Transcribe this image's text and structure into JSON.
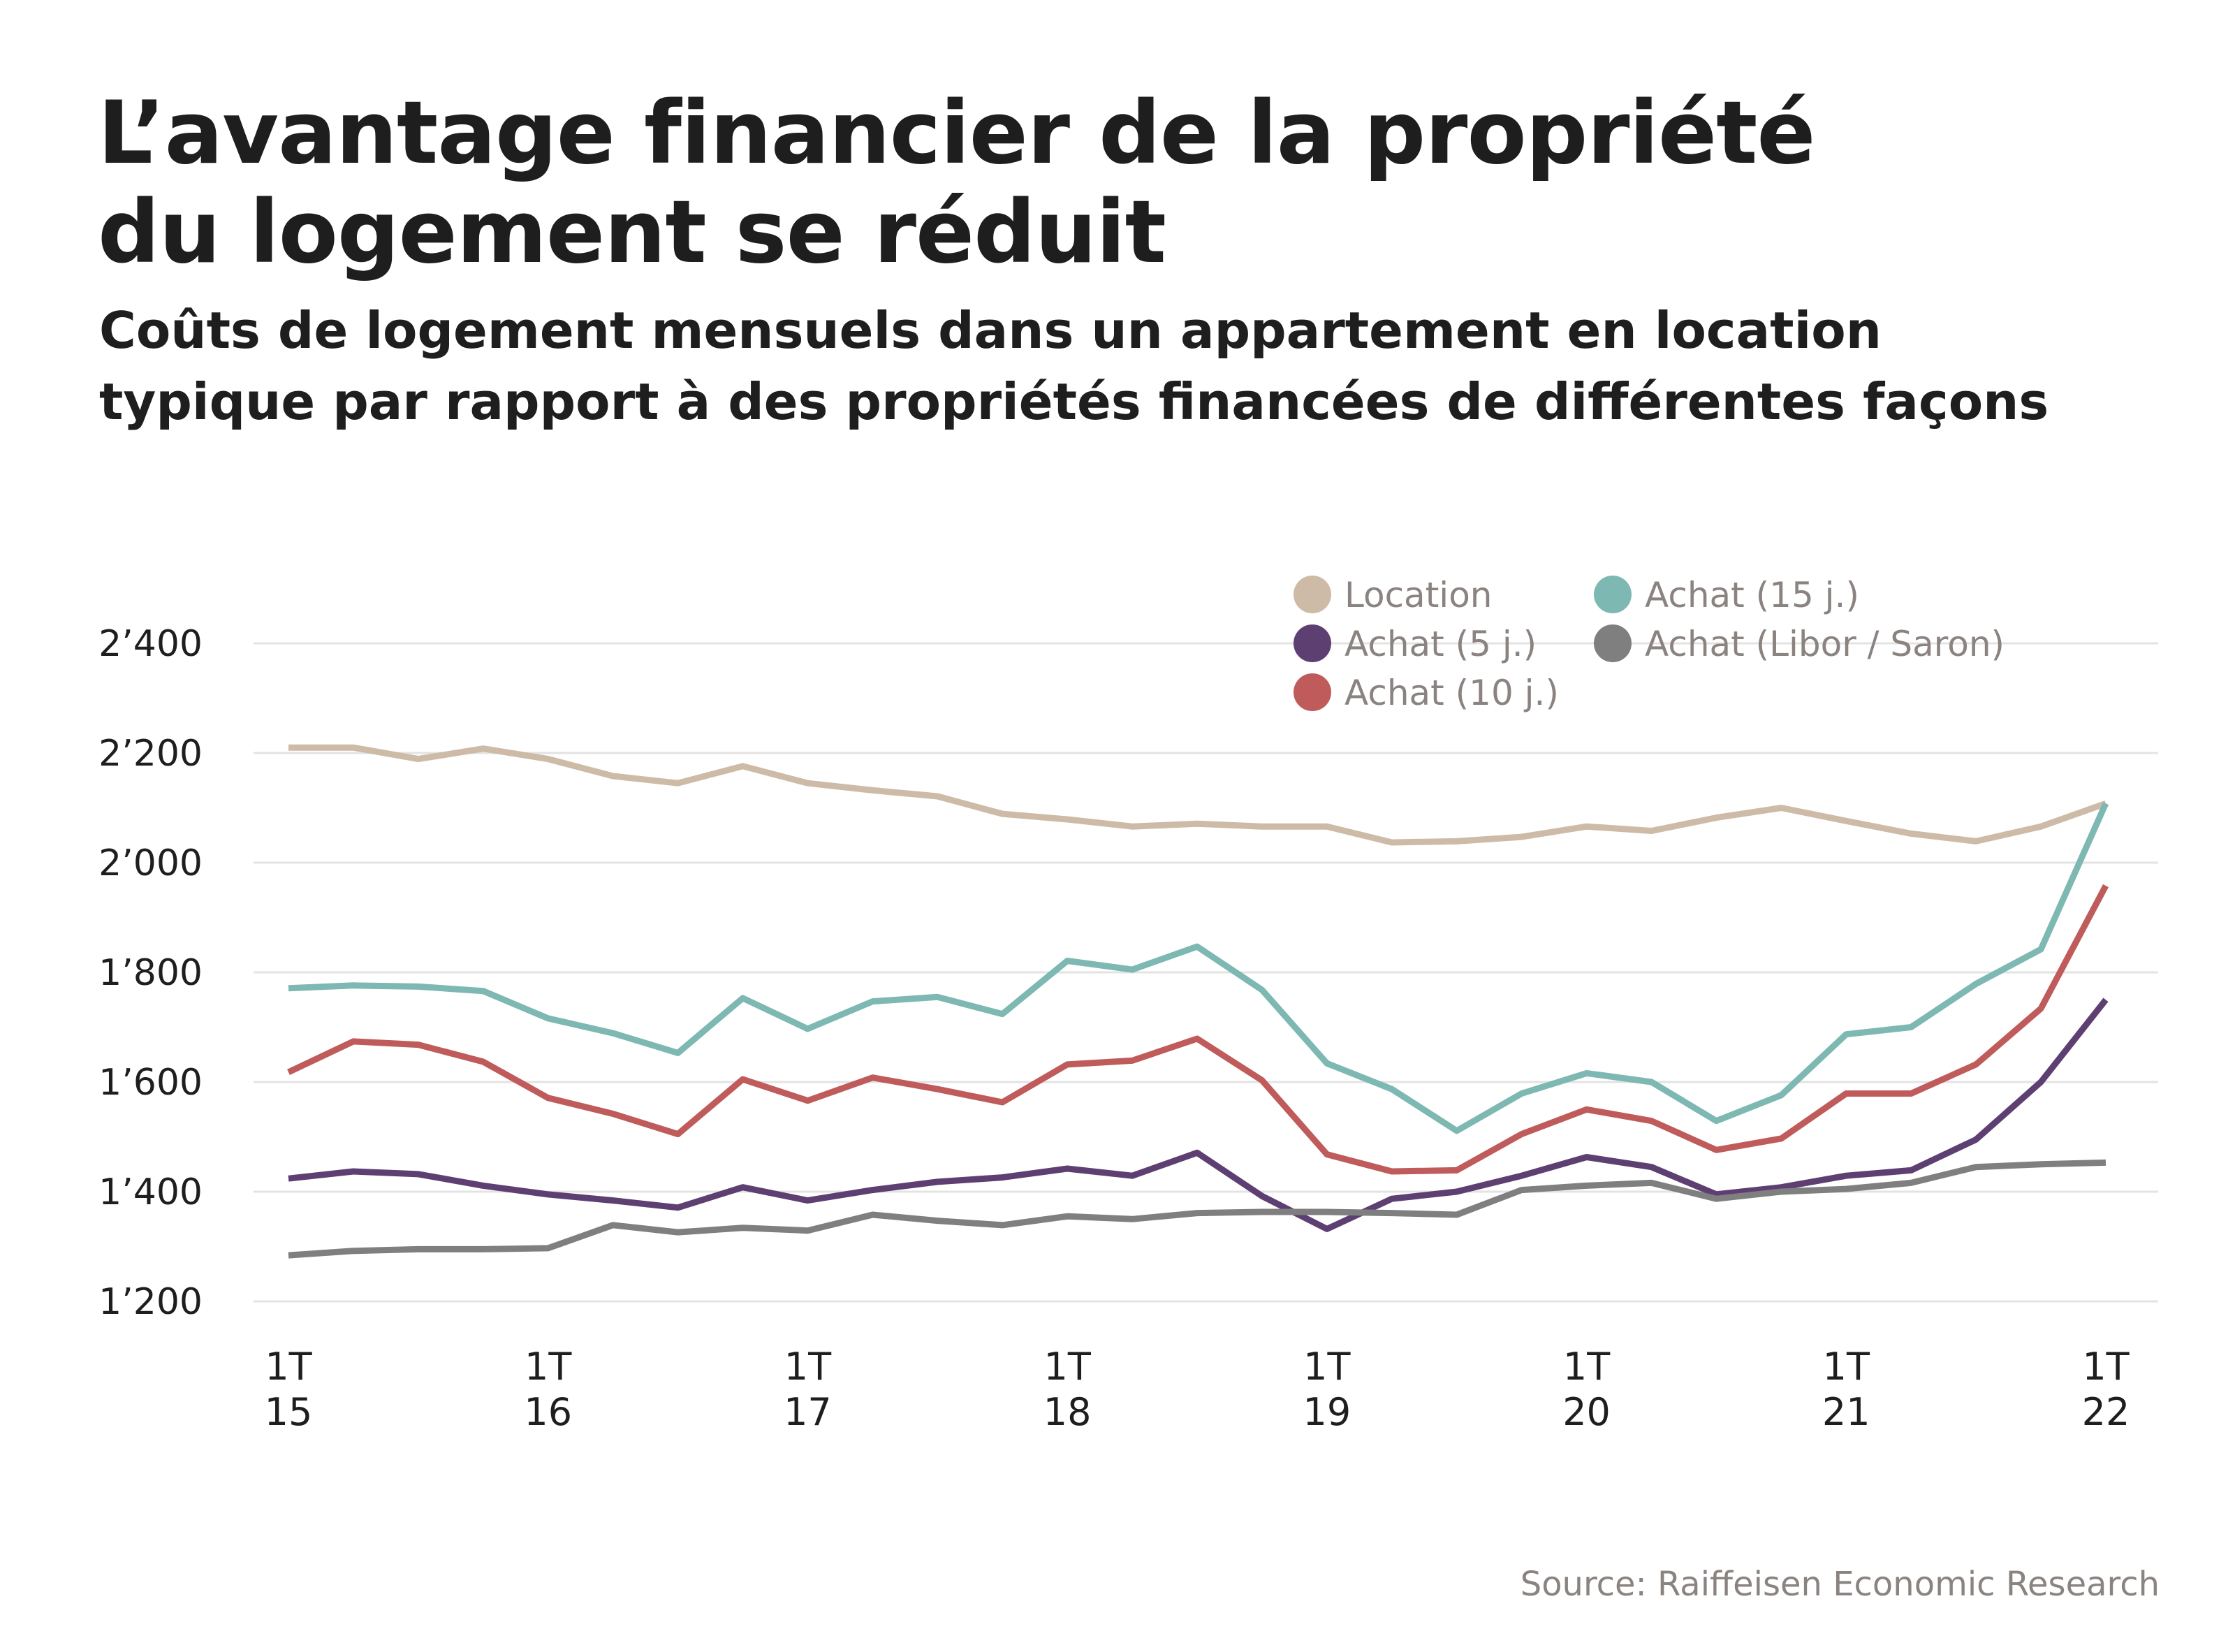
{
  "title": "L’avantage financier de la propriété du logement se réduit",
  "title_lines": [
    "L’avantage financier de la propriété",
    "du logement se réduit"
  ],
  "subtitle_lines": [
    "Coûts de logement mensuels dans un appartement en location",
    "typique par rapport à des propriétés financées de différentes façons"
  ],
  "source": "Source: Raiffeisen Economic Research",
  "chart_data": {
    "type": "line",
    "title": "L’avantage financier de la propriété du logement se réduit",
    "subtitle": "Coûts de logement mensuels dans un appartement en location typique par rapport à des propriétés financées de différentes façons",
    "xlabel": "",
    "ylabel": "",
    "ylim": [
      1200,
      2400
    ],
    "yticks": [
      1200,
      1400,
      1600,
      1800,
      2000,
      2200,
      2400
    ],
    "ytick_labels": [
      "1’200",
      "1’400",
      "1’600",
      "1’800",
      "2’000",
      "2’200",
      "2’400"
    ],
    "grid": "horizontal",
    "legend_position": "top-right",
    "x": [
      "1T15",
      "2T15",
      "3T15",
      "4T15",
      "1T16",
      "2T16",
      "3T16",
      "4T16",
      "1T17",
      "2T17",
      "3T17",
      "4T17",
      "1T18",
      "2T18",
      "3T18",
      "4T18",
      "1T19",
      "2T19",
      "3T19",
      "4T19",
      "1T20",
      "2T20",
      "3T20",
      "4T20",
      "1T21",
      "2T21",
      "3T21",
      "4T21",
      "1T22"
    ],
    "xticks": [
      {
        "x": "1T15",
        "line1": "1T",
        "line2": "15"
      },
      {
        "x": "1T16",
        "line1": "1T",
        "line2": "16"
      },
      {
        "x": "1T17",
        "line1": "1T",
        "line2": "17"
      },
      {
        "x": "1T18",
        "line1": "1T",
        "line2": "18"
      },
      {
        "x": "1T19",
        "line1": "1T",
        "line2": "19"
      },
      {
        "x": "1T20",
        "line1": "1T",
        "line2": "20"
      },
      {
        "x": "1T21",
        "line1": "1T",
        "line2": "21"
      },
      {
        "x": "1T22",
        "line1": "1T",
        "line2": "22"
      }
    ],
    "series": [
      {
        "name": "Location",
        "color": "#CDBBA8",
        "values": [
          2210,
          2210,
          2189,
          2208,
          2189,
          2158,
          2145,
          2176,
          2145,
          2132,
          2121,
          2089,
          2079,
          2066,
          2071,
          2066,
          2066,
          2037,
          2039,
          2047,
          2066,
          2058,
          2082,
          2100,
          2076,
          2053,
          2039,
          2066,
          2108
        ]
      },
      {
        "name": "Achat (15 j.)",
        "color": "#7EB8B3",
        "values": [
          1771,
          1776,
          1774,
          1766,
          1716,
          1689,
          1653,
          1753,
          1697,
          1747,
          1755,
          1724,
          1821,
          1805,
          1847,
          1768,
          1634,
          1587,
          1511,
          1579,
          1616,
          1600,
          1529,
          1576,
          1687,
          1700,
          1779,
          1842,
          2108
        ]
      },
      {
        "name": "Achat (5 j.)",
        "color": "#5E3F72",
        "values": [
          1424,
          1437,
          1432,
          1411,
          1395,
          1384,
          1371,
          1408,
          1384,
          1403,
          1418,
          1426,
          1442,
          1429,
          1471,
          1392,
          1332,
          1387,
          1400,
          1429,
          1463,
          1445,
          1395,
          1408,
          1429,
          1439,
          1495,
          1600,
          1750
        ]
      },
      {
        "name": "Achat (Libor / Saron)",
        "color": "#7F7F7F",
        "values": [
          1284,
          1292,
          1295,
          1295,
          1297,
          1339,
          1326,
          1334,
          1329,
          1358,
          1347,
          1339,
          1355,
          1350,
          1361,
          1363,
          1363,
          1361,
          1358,
          1403,
          1411,
          1416,
          1387,
          1400,
          1405,
          1416,
          1445,
          1450,
          1453
        ]
      },
      {
        "name": "Achat (10 j.)",
        "color": "#C05B5B",
        "values": [
          1618,
          1674,
          1668,
          1637,
          1571,
          1542,
          1505,
          1605,
          1566,
          1608,
          1587,
          1563,
          1632,
          1639,
          1679,
          1603,
          1468,
          1437,
          1439,
          1505,
          1550,
          1529,
          1476,
          1497,
          1579,
          1579,
          1632,
          1734,
          1958
        ]
      }
    ],
    "legend_order": [
      "Location",
      "Achat (15 j.)",
      "Achat (5 j.)",
      "Achat (Libor / Saron)",
      "Achat (10 j.)"
    ]
  }
}
